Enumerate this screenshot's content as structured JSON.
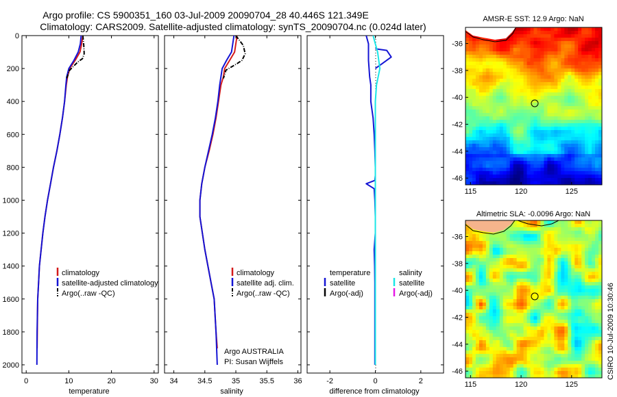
{
  "figure": {
    "title_line1": "Argo profile: CS 5900351_160 03-Jul-2009 20090704_28 40.446S 121.349E",
    "title_line2": "Climatology: CARS2009. Satellite-adjusted climatology: synTS_20090704.nc (0.024d later)",
    "stamp": "CSIRO 10-Jul-2009 10:30:46",
    "argo_note_1": "Argo AUSTRALIA",
    "argo_note_2": "PI: Susan Wijffels"
  },
  "colors": {
    "climatology": "#d41a1a",
    "satellite": "#1414d4",
    "argo": "#000000",
    "salinity_satellite": "#19e6e6",
    "salinity_argo": "#e619e6"
  },
  "chart_data": [
    {
      "type": "line",
      "xlabel": "temperature",
      "ylabel": "",
      "xlim": [
        -1,
        31
      ],
      "ylim": [
        2050,
        0
      ],
      "xticks": [
        0,
        10,
        20,
        30
      ],
      "yticks": [
        0,
        200,
        400,
        600,
        800,
        1000,
        1200,
        1400,
        1600,
        1800,
        2000
      ],
      "legend_position": "middle-right",
      "legend": [
        {
          "label": "climatology",
          "style": "solid",
          "color_key": "climatology"
        },
        {
          "label": "satellite-adjusted climatology",
          "style": "solid",
          "color_key": "satellite"
        },
        {
          "label": "Argo(..raw -QC)",
          "style": "dashdot",
          "color_key": "argo"
        }
      ],
      "series": [
        {
          "color_key": "climatology",
          "style": "solid",
          "x": [
            13.3,
            13.0,
            12.6,
            11.5,
            10.2,
            9.7,
            9.4,
            9.0,
            8.5,
            7.9,
            7.2,
            6.4,
            5.7,
            5.0,
            4.4,
            3.9,
            3.5,
            3.1,
            2.9,
            2.7,
            2.6,
            2.55
          ],
          "y": [
            0,
            50,
            100,
            150,
            200,
            250,
            300,
            400,
            500,
            600,
            700,
            800,
            900,
            1000,
            1100,
            1200,
            1300,
            1400,
            1500,
            1600,
            1800,
            1900
          ]
        },
        {
          "color_key": "satellite",
          "style": "solid",
          "x": [
            12.9,
            12.7,
            12.2,
            11.2,
            10.0,
            9.5,
            9.3,
            9.0,
            8.5,
            7.9,
            7.2,
            6.4,
            5.7,
            5.0,
            4.4,
            3.9,
            3.5,
            3.1,
            2.9,
            2.7,
            2.55,
            2.5
          ],
          "y": [
            0,
            50,
            100,
            150,
            200,
            250,
            300,
            400,
            500,
            600,
            700,
            800,
            900,
            1000,
            1100,
            1200,
            1300,
            1400,
            1500,
            1600,
            1800,
            2000
          ]
        },
        {
          "color_key": "argo",
          "style": "dashdot",
          "x": [
            13.3,
            13.5,
            13.6,
            13.2,
            12.1,
            10.2,
            9.5
          ],
          "y": [
            0,
            60,
            110,
            140,
            160,
            210,
            260
          ]
        }
      ]
    },
    {
      "type": "line",
      "xlabel": "salinity",
      "ylabel": "",
      "xlim": [
        33.85,
        36.05
      ],
      "ylim": [
        2050,
        0
      ],
      "xticks": [
        34,
        34.5,
        35,
        35.5,
        36
      ],
      "xtick_labels": [
        "34",
        "34.5",
        "35",
        "35.5",
        "36"
      ],
      "legend_position": "middle-right",
      "legend": [
        {
          "label": "climatology",
          "style": "solid",
          "color_key": "climatology"
        },
        {
          "label": "satellite adj. clim.",
          "style": "solid",
          "color_key": "satellite"
        },
        {
          "label": "Argo(..raw -QC)",
          "style": "dashdot",
          "color_key": "argo"
        }
      ],
      "series": [
        {
          "color_key": "climatology",
          "style": "solid",
          "x": [
            35.02,
            35.0,
            34.98,
            34.9,
            34.82,
            34.8,
            34.76,
            34.72,
            34.68,
            34.63,
            34.57,
            34.5,
            34.45,
            34.42,
            34.42,
            34.46,
            34.5,
            34.55,
            34.6,
            34.65,
            34.68,
            34.7
          ],
          "y": [
            0,
            50,
            100,
            150,
            200,
            250,
            300,
            400,
            500,
            600,
            700,
            800,
            900,
            1000,
            1100,
            1200,
            1300,
            1400,
            1500,
            1600,
            1800,
            1900
          ]
        },
        {
          "color_key": "satellite",
          "style": "solid",
          "x": [
            34.97,
            34.95,
            34.93,
            34.85,
            34.78,
            34.76,
            34.74,
            34.71,
            34.67,
            34.62,
            34.56,
            34.5,
            34.45,
            34.42,
            34.42,
            34.46,
            34.5,
            34.55,
            34.6,
            34.65,
            34.68,
            34.7
          ],
          "y": [
            0,
            50,
            100,
            150,
            200,
            250,
            300,
            400,
            500,
            600,
            700,
            800,
            900,
            1000,
            1100,
            1200,
            1300,
            1400,
            1500,
            1600,
            1800,
            2000
          ]
        },
        {
          "color_key": "argo",
          "style": "dashdot",
          "x": [
            35.0,
            35.12,
            35.15,
            35.1,
            35.02,
            34.84,
            34.8
          ],
          "y": [
            0,
            60,
            110,
            150,
            170,
            210,
            260
          ]
        }
      ]
    },
    {
      "type": "line",
      "xlabel": "difference from climatology",
      "ylabel": "",
      "xlim": [
        -3.0,
        3.0
      ],
      "ylim": [
        2050,
        0
      ],
      "xticks": [
        -2,
        0,
        2
      ],
      "legend_position": "middle-right",
      "legend": [
        {
          "label": "temperature",
          "style": "none",
          "color_key": "argo"
        },
        {
          "label": "satellite",
          "style": "solid",
          "color_key": "satellite"
        },
        {
          "label": "Argo(-adj)",
          "style": "solid",
          "color_key": "argo"
        },
        {
          "label": "salinity",
          "style": "none",
          "color_key": "argo"
        },
        {
          "label": "satellite",
          "style": "solid",
          "color_key": "salinity_satellite"
        },
        {
          "label": "Argo(-adj)",
          "style": "solid",
          "color_key": "salinity_argo"
        }
      ],
      "series": [
        {
          "color_key": "satellite",
          "style": "solid",
          "x": [
            -0.4,
            -0.3,
            -0.3,
            -0.25,
            -0.2,
            -0.2,
            -0.1,
            -0.05,
            -0.02,
            0.0,
            0.0,
            -0.02,
            -0.4,
            -0.05,
            -0.02,
            0.0,
            0.0,
            -0.05,
            -0.03,
            -0.02,
            -0.02,
            -0.02,
            -0.02
          ],
          "y": [
            0,
            50,
            150,
            250,
            300,
            400,
            500,
            600,
            700,
            800,
            850,
            880,
            900,
            930,
            1000,
            1100,
            1200,
            1300,
            1400,
            1500,
            1600,
            1800,
            2000
          ]
        },
        {
          "color_key": "satellite",
          "style": "solid",
          "x": [
            0.0,
            0.5,
            0.7,
            0.3,
            0.0
          ],
          "y": [
            80,
            90,
            130,
            170,
            200
          ]
        },
        {
          "color_key": "salinity_satellite",
          "style": "solid",
          "x": [
            -0.1,
            0.1,
            0.2,
            0.05,
            0.0,
            0.0,
            0.0,
            0.0,
            0.0,
            0.0,
            0.0
          ],
          "y": [
            0,
            100,
            200,
            300,
            400,
            600,
            800,
            1000,
            1400,
            1800,
            2000
          ]
        }
      ]
    },
    {
      "type": "heatmap",
      "title": "AMSR-E SST: 12.9 Argo: NaN",
      "xlim": [
        114.5,
        128.0
      ],
      "ylim": [
        -46.5,
        -34.8
      ],
      "xticks": [
        115,
        120,
        125
      ],
      "yticks": [
        -36,
        -38,
        -40,
        -42,
        -44,
        -46
      ],
      "marker": {
        "x": 121.349,
        "y": -40.446
      }
    },
    {
      "type": "heatmap",
      "title": "Altimetric SLA: -0.0096 Argo: NaN",
      "xlim": [
        114.5,
        128.0
      ],
      "ylim": [
        -46.5,
        -34.8
      ],
      "xticks": [
        115,
        120,
        125
      ],
      "yticks": [
        -36,
        -38,
        -40,
        -42,
        -44,
        -46
      ],
      "marker": {
        "x": 121.349,
        "y": -40.446
      }
    }
  ]
}
